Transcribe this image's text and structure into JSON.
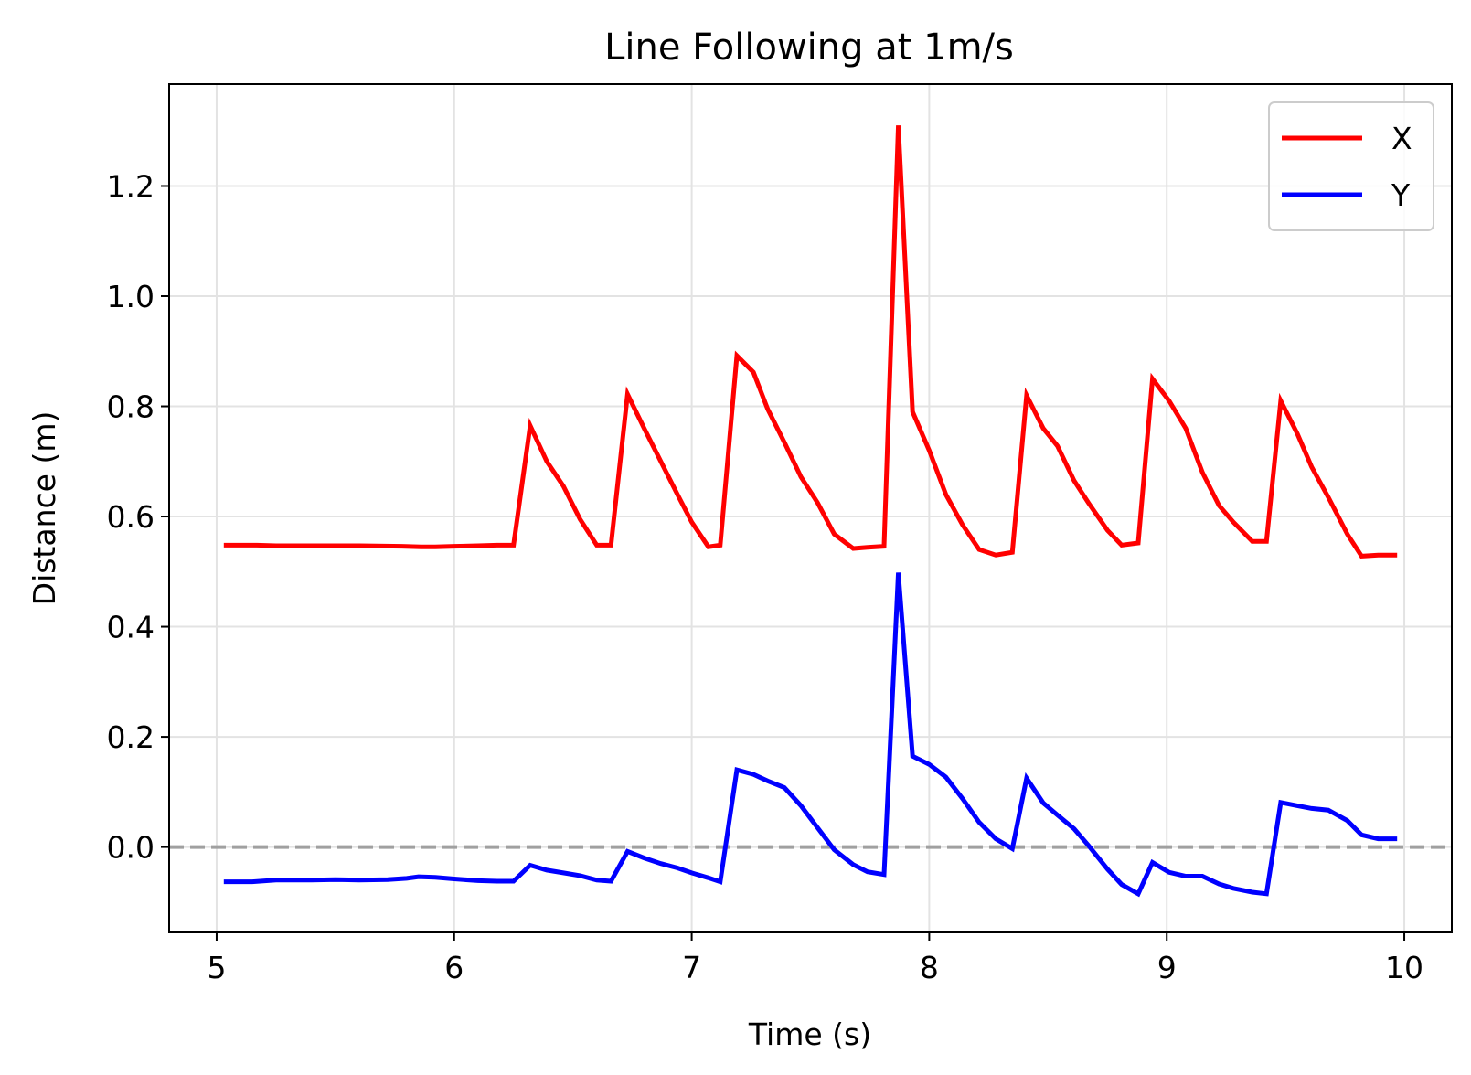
{
  "chart_data": {
    "type": "line",
    "title": "Line Following at 1m/s",
    "xlabel": "Time (s)",
    "ylabel": "Distance (m)",
    "xlim": [
      4.8,
      10.2
    ],
    "ylim": [
      -0.155,
      1.385
    ],
    "xticks": [
      5,
      6,
      7,
      8,
      9,
      10
    ],
    "yticks": [
      0.0,
      0.2,
      0.4,
      0.6,
      0.8,
      1.0,
      1.2
    ],
    "xtick_labels": [
      "5",
      "6",
      "7",
      "8",
      "9",
      "10"
    ],
    "ytick_labels": [
      "0.0",
      "0.2",
      "0.4",
      "0.6",
      "0.8",
      "1.0",
      "1.2"
    ],
    "grid": true,
    "legend_position": "top-right",
    "reference_line": {
      "y": 0.0,
      "style": "dashed",
      "color": "#a0a0a0"
    },
    "series": [
      {
        "name": "X",
        "color": "#ff0000",
        "x": [
          5.03,
          5.17,
          5.25,
          5.4,
          5.6,
          5.78,
          5.86,
          5.92,
          6.0,
          6.1,
          6.18,
          6.25,
          6.32,
          6.39,
          6.46,
          6.53,
          6.6,
          6.66,
          6.73,
          6.8,
          6.87,
          6.94,
          7.0,
          7.07,
          7.12,
          7.19,
          7.26,
          7.32,
          7.39,
          7.46,
          7.53,
          7.6,
          7.68,
          7.74,
          7.81,
          7.87,
          7.93,
          8.0,
          8.07,
          8.14,
          8.21,
          8.28,
          8.35,
          8.41,
          8.48,
          8.54,
          8.61,
          8.67,
          8.75,
          8.81,
          8.88,
          8.94,
          9.01,
          9.08,
          9.15,
          9.22,
          9.28,
          9.36,
          9.42,
          9.48,
          9.55,
          9.61,
          9.68,
          9.76,
          9.82,
          9.89,
          9.97
        ],
        "values": [
          0.548,
          0.548,
          0.547,
          0.547,
          0.547,
          0.546,
          0.545,
          0.545,
          0.546,
          0.547,
          0.548,
          0.548,
          0.765,
          0.7,
          0.655,
          0.595,
          0.548,
          0.548,
          0.822,
          0.76,
          0.7,
          0.64,
          0.59,
          0.545,
          0.548,
          0.892,
          0.862,
          0.795,
          0.735,
          0.672,
          0.625,
          0.568,
          0.542,
          0.544,
          0.546,
          1.31,
          0.79,
          0.72,
          0.64,
          0.585,
          0.54,
          0.53,
          0.535,
          0.82,
          0.76,
          0.728,
          0.665,
          0.625,
          0.575,
          0.548,
          0.552,
          0.85,
          0.81,
          0.76,
          0.68,
          0.62,
          0.59,
          0.555,
          0.555,
          0.81,
          0.75,
          0.69,
          0.635,
          0.568,
          0.528,
          0.53,
          0.53
        ]
      },
      {
        "name": "Y",
        "color": "#0000ff",
        "x": [
          5.03,
          5.15,
          5.25,
          5.4,
          5.5,
          5.6,
          5.72,
          5.8,
          5.85,
          5.92,
          6.0,
          6.1,
          6.18,
          6.25,
          6.32,
          6.39,
          6.46,
          6.53,
          6.6,
          6.66,
          6.73,
          6.8,
          6.87,
          6.94,
          7.0,
          7.07,
          7.12,
          7.19,
          7.26,
          7.32,
          7.39,
          7.46,
          7.53,
          7.6,
          7.68,
          7.74,
          7.81,
          7.87,
          7.93,
          8.0,
          8.07,
          8.14,
          8.21,
          8.28,
          8.35,
          8.41,
          8.48,
          8.54,
          8.61,
          8.67,
          8.75,
          8.81,
          8.88,
          8.94,
          9.01,
          9.08,
          9.15,
          9.22,
          9.28,
          9.36,
          9.42,
          9.48,
          9.55,
          9.61,
          9.68,
          9.76,
          9.82,
          9.89,
          9.97
        ],
        "values": [
          -0.063,
          -0.063,
          -0.06,
          -0.06,
          -0.059,
          -0.06,
          -0.059,
          -0.057,
          -0.054,
          -0.055,
          -0.058,
          -0.061,
          -0.062,
          -0.062,
          -0.033,
          -0.042,
          -0.047,
          -0.052,
          -0.06,
          -0.062,
          -0.008,
          -0.02,
          -0.03,
          -0.038,
          -0.047,
          -0.056,
          -0.063,
          0.14,
          0.132,
          0.12,
          0.108,
          0.075,
          0.035,
          -0.005,
          -0.032,
          -0.045,
          -0.05,
          0.498,
          0.165,
          0.15,
          0.127,
          0.088,
          0.045,
          0.015,
          -0.003,
          0.125,
          0.08,
          0.058,
          0.033,
          0.003,
          -0.04,
          -0.068,
          -0.085,
          -0.028,
          -0.046,
          -0.053,
          -0.053,
          -0.067,
          -0.075,
          -0.082,
          -0.085,
          0.081,
          0.075,
          0.07,
          0.067,
          0.048,
          0.022,
          0.015,
          0.015
        ]
      }
    ]
  }
}
